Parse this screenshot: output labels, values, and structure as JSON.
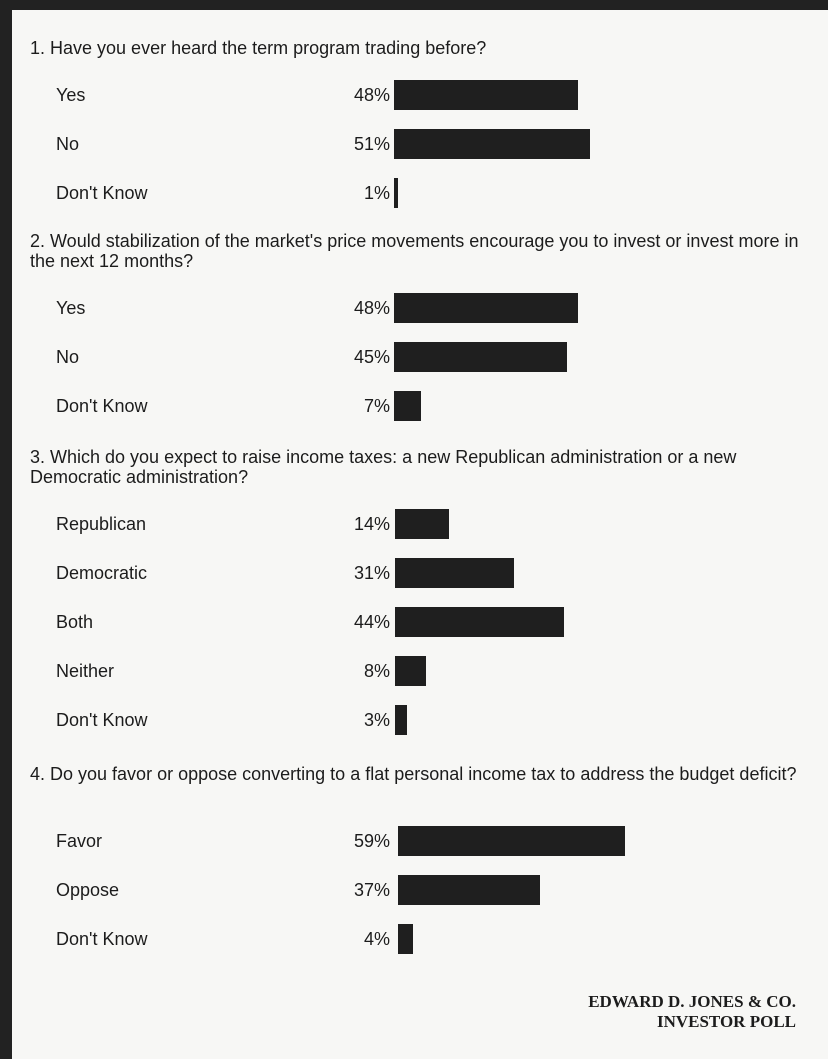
{
  "colors": {
    "bar": "#1f1f1f",
    "background": "#f7f7f5",
    "border": "#222222"
  },
  "chart_data": [
    {
      "type": "bar",
      "orientation": "horizontal",
      "number": "1.",
      "title": "Have you ever heard the term program trading before?",
      "categories": [
        "Yes",
        "No",
        "Don't Know"
      ],
      "values": [
        48,
        51,
        1
      ],
      "value_labels": [
        "48%",
        "51%",
        "1%"
      ],
      "unit": "%",
      "grid": false
    },
    {
      "type": "bar",
      "orientation": "horizontal",
      "number": "2.",
      "title": "Would stabilization of the market's price movements encourage you to invest or invest more in the next 12 months?",
      "categories": [
        "Yes",
        "No",
        "Don't Know"
      ],
      "values": [
        48,
        45,
        7
      ],
      "value_labels": [
        "48%",
        "45%",
        "7%"
      ],
      "unit": "%",
      "grid": false
    },
    {
      "type": "bar",
      "orientation": "horizontal",
      "number": "3.",
      "title": "Which do you expect to raise income taxes: a new Republican administration or a new Democratic administration?",
      "categories": [
        "Republican",
        "Democratic",
        "Both",
        "Neither",
        "Don't Know"
      ],
      "values": [
        14,
        31,
        44,
        8,
        3
      ],
      "value_labels": [
        "14%",
        "31%",
        "44%",
        "8%",
        "3%"
      ],
      "unit": "%",
      "grid": false
    },
    {
      "type": "bar",
      "orientation": "horizontal",
      "number": "4.",
      "title": "Do you favor or oppose converting to a flat personal income tax to address the budget deficit?",
      "categories": [
        "Favor",
        "Oppose",
        "Don't Know"
      ],
      "values": [
        59,
        37,
        4
      ],
      "value_labels": [
        "59%",
        "37%",
        "4%"
      ],
      "unit": "%",
      "grid": false
    }
  ],
  "footer": {
    "line1": "EDWARD D. JONES & CO.",
    "line2": "INVESTOR POLL"
  }
}
